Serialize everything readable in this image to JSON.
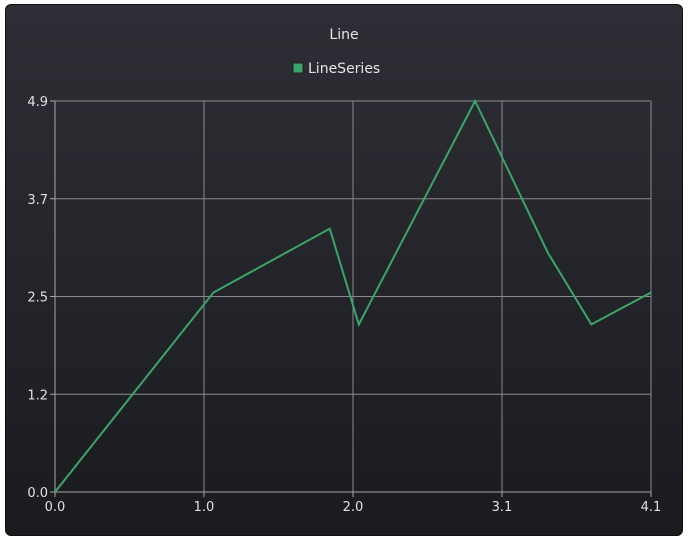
{
  "chart_data": {
    "type": "line",
    "title": "Line",
    "xlabel": "",
    "ylabel": "",
    "xlim": [
      0.0,
      4.1
    ],
    "ylim": [
      0.0,
      4.9
    ],
    "x_ticks": [
      "0.0",
      "1.0",
      "2.0",
      "3.1",
      "4.1"
    ],
    "y_ticks": [
      "0.0",
      "1.2",
      "2.5",
      "3.7",
      "4.9"
    ],
    "grid": true,
    "legend": "top-center",
    "series": [
      {
        "name": "LineSeries",
        "color": "#3aa56a",
        "x": [
          0.0,
          1.09,
          1.89,
          2.09,
          2.89,
          3.39,
          3.69,
          4.1
        ],
        "y": [
          0.0,
          2.5,
          3.3,
          2.1,
          4.9,
          3.0,
          2.1,
          2.5
        ]
      }
    ]
  }
}
